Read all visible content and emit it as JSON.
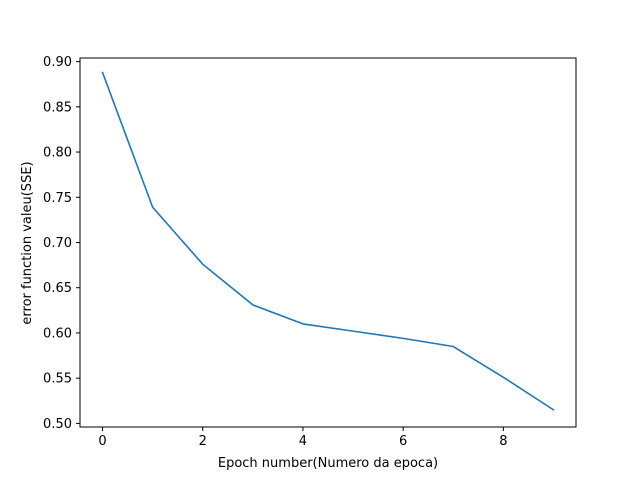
{
  "chart_data": {
    "type": "line",
    "title": "",
    "xlabel": "Epoch number(Numero da epoca)",
    "ylabel": "error function valeu(SSE)",
    "xlim": [
      -0.45,
      9.45
    ],
    "ylim": [
      0.496,
      0.904
    ],
    "x_ticks": [
      0,
      2,
      4,
      6,
      8
    ],
    "x_tick_labels": [
      "0",
      "2",
      "4",
      "6",
      "8"
    ],
    "y_ticks": [
      0.5,
      0.55,
      0.6,
      0.65,
      0.7,
      0.75,
      0.8,
      0.85,
      0.9
    ],
    "y_tick_labels": [
      "0.50",
      "0.55",
      "0.60",
      "0.65",
      "0.70",
      "0.75",
      "0.80",
      "0.85",
      "0.90"
    ],
    "grid": false,
    "legend": "none",
    "series": [
      {
        "color": "#1f77b4",
        "x": [
          0,
          1,
          2,
          3,
          4,
          5,
          6,
          7,
          8,
          9
        ],
        "y": [
          0.888,
          0.739,
          0.676,
          0.631,
          0.61,
          0.602,
          0.594,
          0.585,
          0.551,
          0.515
        ]
      }
    ]
  }
}
